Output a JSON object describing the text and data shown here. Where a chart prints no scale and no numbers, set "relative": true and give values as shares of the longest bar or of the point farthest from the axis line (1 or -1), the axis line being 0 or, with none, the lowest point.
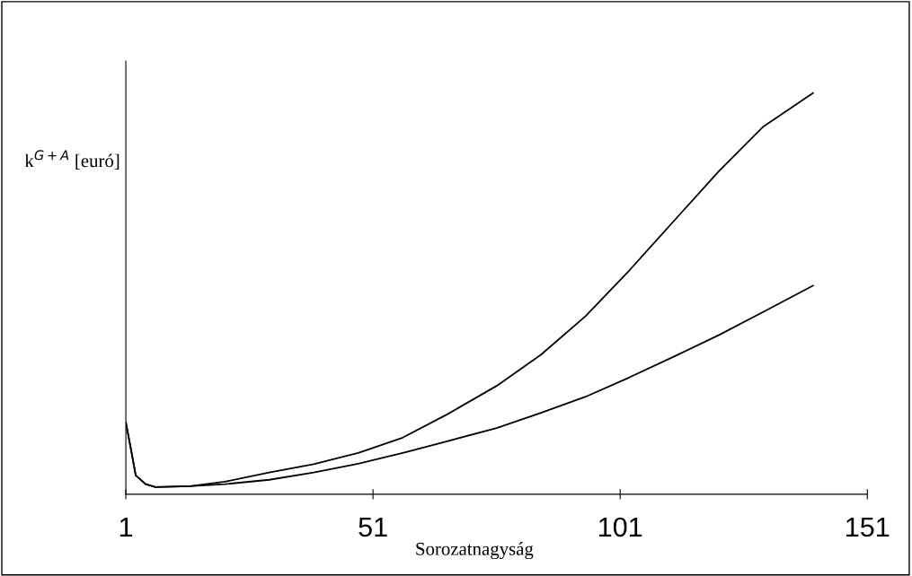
{
  "chart_data": {
    "type": "line",
    "relative": true,
    "xlabel": "Sorozatnagyság",
    "ylabel": "k$^{G+A}$ [euró]",
    "xlim": [
      1,
      151
    ],
    "xticks": [
      1,
      51,
      101,
      151
    ],
    "grid": false,
    "legend": false,
    "marker": "none",
    "line_style": "solid",
    "series": [
      {
        "color": "#000000",
        "x": [
          1,
          2,
          3,
          5,
          7,
          14,
          21,
          30,
          39,
          48,
          57,
          66,
          76,
          85,
          94,
          103,
          112,
          121,
          130,
          140
        ],
        "values": [
          0.179,
          0.114,
          0.047,
          0.025,
          0.018,
          0.02,
          0.031,
          0.054,
          0.075,
          0.103,
          0.141,
          0.199,
          0.27,
          0.348,
          0.444,
          0.56,
          0.683,
          0.806,
          0.917,
          1
        ]
      },
      {
        "color": "#000000",
        "x": [
          1,
          2,
          3,
          5,
          7,
          14,
          21,
          30,
          39,
          48,
          57,
          66,
          76,
          85,
          94,
          103,
          112,
          121,
          130,
          140
        ],
        "values": [
          0.179,
          0.114,
          0.047,
          0.025,
          0.018,
          0.02,
          0.025,
          0.036,
          0.054,
          0.076,
          0.103,
          0.132,
          0.165,
          0.203,
          0.243,
          0.292,
          0.344,
          0.397,
          0.455,
          0.52
        ]
      }
    ]
  }
}
